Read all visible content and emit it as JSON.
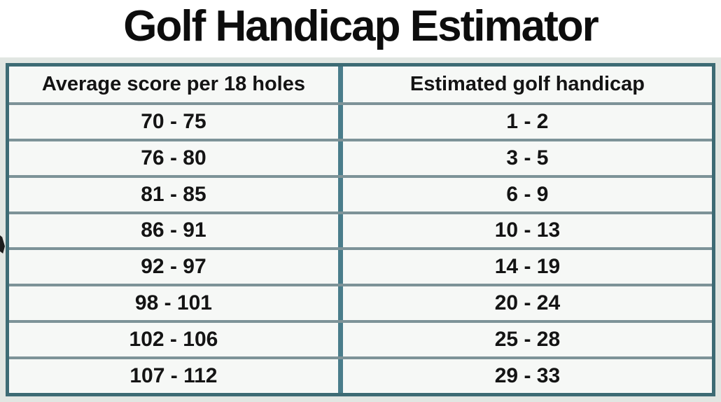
{
  "title": "Golf Handicap Estimator",
  "table": {
    "columns": [
      "Average score per 18 holes",
      "Estimated golf handicap"
    ],
    "rows": [
      [
        "70 - 75",
        "1 - 2"
      ],
      [
        "76 - 80",
        "3 - 5"
      ],
      [
        "81 - 85",
        "6 - 9"
      ],
      [
        "86 - 91",
        "10 - 13"
      ],
      [
        "92 - 97",
        "14 - 19"
      ],
      [
        "98 - 101",
        "20 - 24"
      ],
      [
        "102 - 106",
        "25 - 28"
      ],
      [
        "107 - 112",
        "29 - 33"
      ]
    ]
  },
  "colors": {
    "title_text": "#0d0d0d",
    "cell_text": "#141414",
    "cell_bg": "#f6f8f6",
    "page_margin_bg": "#e1e6e2",
    "outer_border": "#3d6b74",
    "center_divider": "#4a7d8b",
    "row_border": "#7d9398"
  }
}
